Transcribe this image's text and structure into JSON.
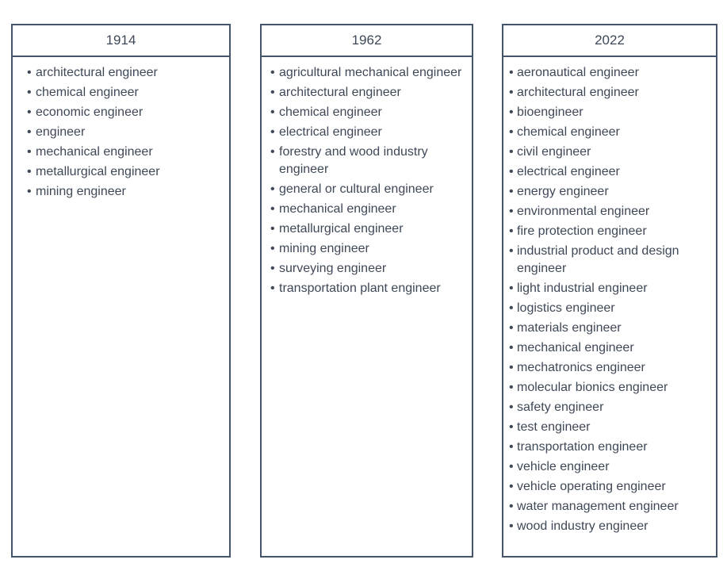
{
  "page": {
    "background_color": "#ffffff",
    "border_color": "#44546A",
    "text_color": "#3E4857"
  },
  "list": {
    "bullet": "•"
  },
  "columns": [
    {
      "title": "1914",
      "items": [
        "architectural engineer",
        "chemical engineer",
        "economic engineer",
        "engineer",
        "mechanical engineer",
        "metallurgical engineer",
        "mining engineer"
      ]
    },
    {
      "title": "1962",
      "items": [
        "agricultural mechanical engineer",
        "architectural engineer",
        "chemical engineer",
        "electrical engineer",
        "forestry and wood industry engineer",
        "general or cultural engineer",
        "mechanical engineer",
        "metallurgical engineer",
        "mining engineer",
        "surveying engineer",
        "transportation plant engineer"
      ]
    },
    {
      "title": "2022",
      "items": [
        "aeronautical engineer",
        "architectural engineer",
        "bioengineer",
        "chemical engineer",
        "civil engineer",
        "electrical engineer",
        "energy engineer",
        "environmental engineer",
        "fire protection engineer",
        "industrial product and design engineer",
        "light industrial engineer",
        "logistics engineer",
        "materials engineer",
        "mechanical engineer",
        "mechatronics engineer",
        "molecular bionics engineer",
        "safety engineer",
        "test engineer",
        "transportation engineer",
        "vehicle engineer",
        "vehicle operating engineer",
        "water management engineer",
        "wood industry engineer"
      ]
    }
  ]
}
